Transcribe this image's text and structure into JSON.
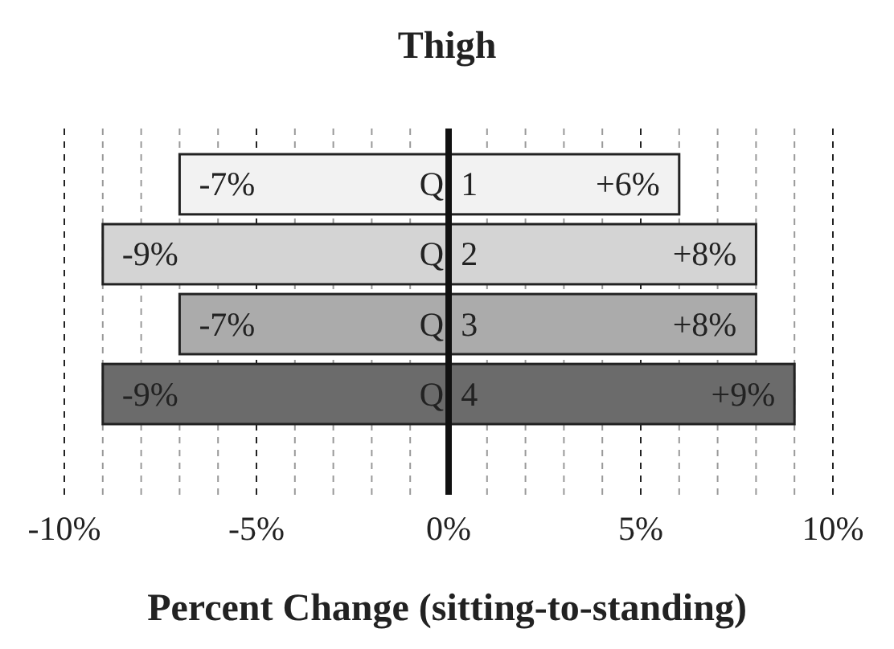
{
  "chart_data": {
    "type": "bar",
    "orientation": "horizontal",
    "stacked": true,
    "title": "Thigh",
    "xlabel": "Percent Change (sitting-to-standing)",
    "categories": [
      "Q 1",
      "Q 2",
      "Q 3",
      "Q 4"
    ],
    "series": [
      {
        "colors": [
          "#f2f2f2",
          "#d4d4d4",
          "#ababab",
          "#6b6b6b"
        ],
        "values": [
          -7,
          -9,
          -7,
          -9
        ],
        "value_labels": [
          "-7%",
          "-9%",
          "-7%",
          "-9%"
        ]
      },
      {
        "colors": [
          "#f2f2f2",
          "#d4d4d4",
          "#ababab",
          "#6b6b6b"
        ],
        "values": [
          6,
          8,
          8,
          9
        ],
        "value_labels": [
          "+6%",
          "+8%",
          "+8%",
          "+9%"
        ]
      }
    ],
    "xlim": [
      -10,
      10
    ],
    "xticks": [
      {
        "value": -10,
        "label": "-10%"
      },
      {
        "value": -9,
        "label": null
      },
      {
        "value": -8,
        "label": null
      },
      {
        "value": -7,
        "label": null
      },
      {
        "value": -6,
        "label": null
      },
      {
        "value": -5,
        "label": "-5%"
      },
      {
        "value": -4,
        "label": null
      },
      {
        "value": -3,
        "label": null
      },
      {
        "value": -2,
        "label": null
      },
      {
        "value": -1,
        "label": null
      },
      {
        "value": 0,
        "label": "0%"
      },
      {
        "value": 1,
        "label": null
      },
      {
        "value": 2,
        "label": null
      },
      {
        "value": 3,
        "label": null
      },
      {
        "value": 4,
        "label": null
      },
      {
        "value": 5,
        "label": "5%"
      },
      {
        "value": 6,
        "label": null
      },
      {
        "value": 7,
        "label": null
      },
      {
        "value": 8,
        "label": null
      },
      {
        "value": 9,
        "label": null
      },
      {
        "value": 10,
        "label": "10%"
      }
    ],
    "grid": "x"
  }
}
